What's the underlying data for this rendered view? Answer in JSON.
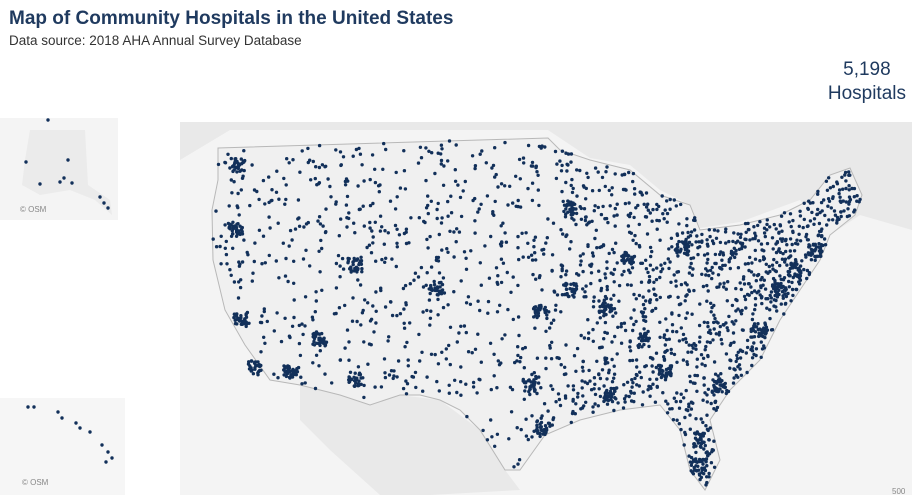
{
  "header": {
    "title": "Map of Community Hospitals in the United States",
    "subtitle": "Data source: 2018 AHA Annual Survey Database"
  },
  "kpi": {
    "value": "5,198",
    "label": "Hospitals"
  },
  "map": {
    "alaska_attribution": "© OSM",
    "hawaii_attribution": "© OSM",
    "scale_label": "500"
  }
}
